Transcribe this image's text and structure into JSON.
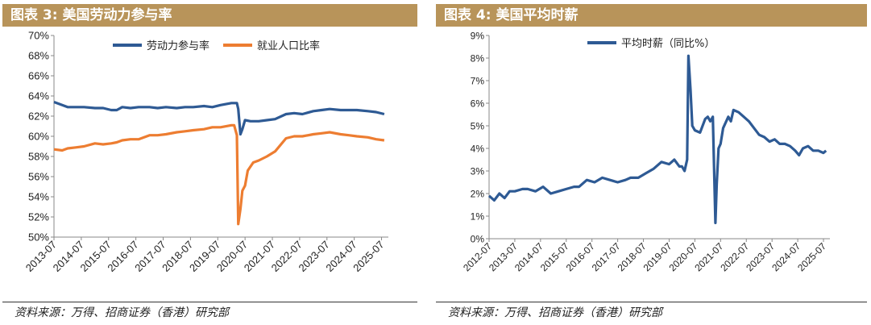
{
  "left": {
    "title": "图表 3:  美国劳动力参与率",
    "source": "资料来源：万得、招商证券（香港）研究部"
  },
  "right": {
    "title": "图表 4:  美国平均时薪",
    "source": "资料来源：万得、招商证券（香港）研究部"
  },
  "colors": {
    "blue": "#2e5a94",
    "orange": "#ed7d31",
    "header": "#b8945a"
  },
  "chart_data": [
    {
      "type": "line",
      "title": "图表 3:  美国劳动力参与率",
      "x_ticks": [
        "2013-07",
        "2014-07",
        "2015-07",
        "2016-07",
        "2017-07",
        "2018-07",
        "2019-07",
        "2020-07",
        "2021-07",
        "2022-07",
        "2023-07",
        "2024-07",
        "2025-07"
      ],
      "y_ticks": [
        "50%",
        "52%",
        "54%",
        "56%",
        "58%",
        "60%",
        "62%",
        "64%",
        "66%",
        "68%",
        "70%"
      ],
      "ylim": [
        50,
        70
      ],
      "xlim": [
        2013.5,
        2025.75
      ],
      "legend_position": "top-center",
      "series": [
        {
          "name": "劳动力参与率",
          "color": "#2e5a94",
          "x": [
            2013.5,
            2013.7,
            2014.0,
            2014.3,
            2014.6,
            2015.0,
            2015.3,
            2015.6,
            2015.8,
            2016.0,
            2016.3,
            2016.6,
            2017.0,
            2017.3,
            2017.6,
            2018.0,
            2018.3,
            2018.6,
            2019.0,
            2019.3,
            2019.6,
            2020.0,
            2020.1,
            2020.2,
            2020.25,
            2020.33,
            2020.4,
            2020.5,
            2020.7,
            2021.0,
            2021.3,
            2021.6,
            2022.0,
            2022.3,
            2022.6,
            2023.0,
            2023.3,
            2023.6,
            2024.0,
            2024.3,
            2024.6,
            2025.0,
            2025.3,
            2025.6
          ],
          "y": [
            63.4,
            63.2,
            62.9,
            62.9,
            62.9,
            62.8,
            62.8,
            62.6,
            62.6,
            62.9,
            62.8,
            62.9,
            62.9,
            62.8,
            62.9,
            62.8,
            62.9,
            62.9,
            63.0,
            62.9,
            63.1,
            63.3,
            63.3,
            63.3,
            62.7,
            60.2,
            60.7,
            61.6,
            61.5,
            61.5,
            61.6,
            61.7,
            62.2,
            62.3,
            62.2,
            62.5,
            62.6,
            62.7,
            62.6,
            62.6,
            62.6,
            62.5,
            62.4,
            62.2
          ]
        },
        {
          "name": "就业人口比率",
          "color": "#ed7d31",
          "x": [
            2013.5,
            2013.8,
            2014.0,
            2014.3,
            2014.6,
            2015.0,
            2015.3,
            2015.6,
            2015.8,
            2016.0,
            2016.3,
            2016.6,
            2017.0,
            2017.3,
            2017.6,
            2018.0,
            2018.3,
            2018.6,
            2019.0,
            2019.3,
            2019.6,
            2020.0,
            2020.1,
            2020.2,
            2020.25,
            2020.33,
            2020.4,
            2020.5,
            2020.6,
            2020.8,
            2021.0,
            2021.3,
            2021.6,
            2022.0,
            2022.3,
            2022.6,
            2023.0,
            2023.3,
            2023.6,
            2024.0,
            2024.3,
            2024.6,
            2025.0,
            2025.3,
            2025.6
          ],
          "y": [
            58.7,
            58.6,
            58.8,
            58.9,
            59.0,
            59.3,
            59.2,
            59.3,
            59.4,
            59.6,
            59.7,
            59.7,
            60.1,
            60.1,
            60.2,
            60.4,
            60.5,
            60.6,
            60.7,
            60.9,
            60.9,
            61.1,
            61.1,
            60.1,
            51.3,
            52.8,
            54.6,
            55.1,
            56.6,
            57.4,
            57.6,
            58.0,
            58.5,
            59.8,
            60.0,
            60.0,
            60.2,
            60.3,
            60.4,
            60.2,
            60.1,
            60.0,
            59.9,
            59.7,
            59.6
          ]
        }
      ]
    },
    {
      "type": "line",
      "title": "图表 4:  美国平均时薪",
      "x_ticks": [
        "2012-07",
        "2013-07",
        "2014-07",
        "2015-07",
        "2016-07",
        "2017-07",
        "2018-07",
        "2019-07",
        "2020-07",
        "2021-07",
        "2022-07",
        "2023-07",
        "2024-07",
        "2025-07"
      ],
      "y_ticks": [
        "0%",
        "1%",
        "2%",
        "3%",
        "4%",
        "5%",
        "6%",
        "7%",
        "8%",
        "9%"
      ],
      "ylim": [
        0,
        9
      ],
      "xlim": [
        2012.5,
        2025.75
      ],
      "legend_position": "top-center",
      "series": [
        {
          "name": "平均时薪（同比%）",
          "color": "#2e5a94",
          "x": [
            2012.5,
            2012.7,
            2012.9,
            2013.1,
            2013.3,
            2013.5,
            2013.8,
            2014.0,
            2014.3,
            2014.6,
            2014.9,
            2015.2,
            2015.5,
            2015.8,
            2016.0,
            2016.3,
            2016.6,
            2016.9,
            2017.2,
            2017.5,
            2017.8,
            2018.0,
            2018.3,
            2018.6,
            2018.9,
            2019.2,
            2019.5,
            2019.7,
            2019.9,
            2020.0,
            2020.1,
            2020.2,
            2020.25,
            2020.33,
            2020.4,
            2020.5,
            2020.7,
            2020.9,
            2021.0,
            2021.1,
            2021.2,
            2021.3,
            2021.35,
            2021.42,
            2021.5,
            2021.6,
            2021.8,
            2021.9,
            2022.0,
            2022.2,
            2022.4,
            2022.6,
            2022.8,
            2023.0,
            2023.2,
            2023.4,
            2023.6,
            2023.8,
            2024.0,
            2024.2,
            2024.4,
            2024.55,
            2024.7,
            2024.9,
            2025.1,
            2025.3,
            2025.5,
            2025.6
          ],
          "y": [
            1.9,
            1.7,
            2.0,
            1.8,
            2.1,
            2.1,
            2.2,
            2.2,
            2.1,
            2.3,
            2.0,
            2.1,
            2.2,
            2.3,
            2.3,
            2.6,
            2.5,
            2.7,
            2.6,
            2.5,
            2.6,
            2.7,
            2.7,
            2.9,
            3.1,
            3.4,
            3.3,
            3.5,
            3.2,
            3.2,
            3.0,
            3.5,
            8.1,
            6.6,
            5.0,
            4.8,
            4.7,
            5.3,
            5.4,
            5.2,
            5.4,
            0.7,
            2.4,
            4.0,
            4.2,
            4.9,
            5.4,
            5.2,
            5.7,
            5.6,
            5.4,
            5.2,
            4.9,
            4.6,
            4.5,
            4.3,
            4.4,
            4.2,
            4.2,
            4.1,
            3.9,
            3.7,
            4.0,
            4.1,
            3.9,
            3.9,
            3.8,
            3.9
          ]
        }
      ]
    }
  ]
}
